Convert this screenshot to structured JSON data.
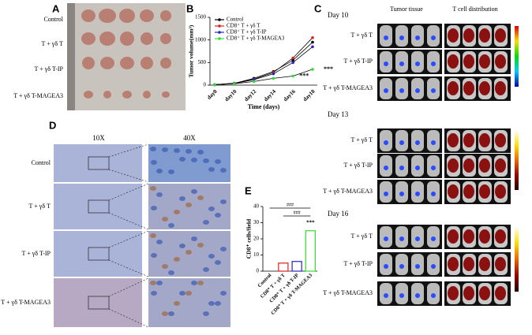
{
  "panels": {
    "a": {
      "label": "A",
      "rows": [
        "Control",
        "T + γδ T",
        "T + γδ T-IP",
        "T + γδ T-MAGEA3"
      ]
    },
    "c": {
      "label": "C",
      "columns": [
        "Tumor tissue",
        "T cell distribution"
      ],
      "days": [
        {
          "title": "Day 10",
          "rows": [
            "T + γδ T",
            "T + γδ T-IP",
            "T + γδ T-MAGEA3"
          ]
        },
        {
          "title": "Day 13",
          "rows": [
            "T + γδ T",
            "T + γδ T-IP",
            "T + γδ T-MAGEA3"
          ]
        },
        {
          "title": "Day 16",
          "rows": [
            "T + γδ T",
            "T + γδ T-IP",
            "T + γδ T-MAGEA3"
          ]
        }
      ]
    },
    "d": {
      "label": "D",
      "columns": [
        "10X",
        "40X"
      ],
      "rows": [
        "Control",
        "T + γδ T",
        "T + γδ T-IP",
        "T + γδ T-MAGEA3"
      ]
    }
  },
  "chart_data": [
    {
      "type": "line",
      "panel": "B",
      "x_label": "Time (days)",
      "y_label": "Tumor volume(mm³)",
      "categories": [
        "day8",
        "day10",
        "day12",
        "day14",
        "day16",
        "day18"
      ],
      "ylim": [
        0,
        1500
      ],
      "yticks": [
        0,
        500,
        1000,
        1500
      ],
      "series": [
        {
          "name": "Control",
          "color": "#000000",
          "values": [
            10,
            40,
            150,
            300,
            550,
            950
          ]
        },
        {
          "name": "CD8⁺ T + γδ T",
          "color": "#e0201b",
          "values": [
            10,
            40,
            130,
            280,
            600,
            1050
          ]
        },
        {
          "name": "CD8⁺ T + γδ T-IP",
          "color": "#2424d0",
          "values": [
            10,
            35,
            120,
            250,
            500,
            850
          ]
        },
        {
          "name": "CD8⁺ T + γδ T-MAGEA3",
          "color": "#33dd33",
          "values": [
            10,
            30,
            80,
            150,
            200,
            350
          ]
        }
      ],
      "annotations": [
        "***",
        "***"
      ]
    },
    {
      "type": "bar",
      "panel": "E",
      "y_label": "CD8⁺ cells/field",
      "categories": [
        "Control",
        "CD8⁺ T + γδ T",
        "CD8⁺ T + γδ T-IP",
        "CD8⁺ T + γδ T-MAGEA3"
      ],
      "values": [
        0,
        5,
        6,
        25
      ],
      "colors": [
        "#000000",
        "#e0201b",
        "#2424d0",
        "#33dd33"
      ],
      "ylim": [
        0,
        40
      ],
      "yticks": [
        0,
        10,
        20,
        30,
        40
      ],
      "annotations": [
        "###",
        "###",
        "***"
      ]
    }
  ]
}
